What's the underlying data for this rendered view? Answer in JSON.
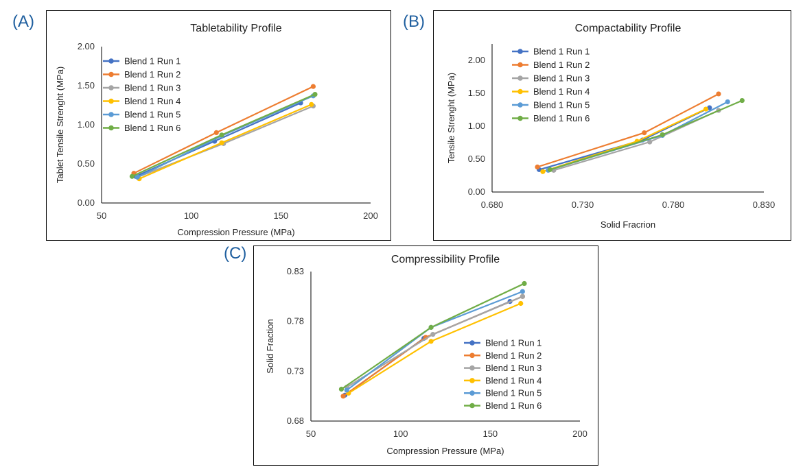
{
  "panels": [
    {
      "letter": "(A)"
    },
    {
      "letter": "(B)"
    },
    {
      "letter": "(C)"
    }
  ],
  "chart_data": [
    {
      "type": "line",
      "title": "Tabletability Profile",
      "xlabel": "Compression Pressure (MPa)",
      "ylabel": "Tablet Tensile Strenght (MPa)",
      "xlim": [
        50,
        200
      ],
      "ylim": [
        0,
        2
      ],
      "xticks": [
        "50",
        "100",
        "150",
        "200"
      ],
      "yticks": [
        "0.00",
        "0.50",
        "1.00",
        "1.50",
        "2.00"
      ],
      "legend": "top-left",
      "series": [
        {
          "name": "Blend 1 Run 1",
          "color": "#4472c4",
          "x": [
            69,
            113,
            161
          ],
          "y": [
            0.34,
            0.79,
            1.28
          ]
        },
        {
          "name": "Blend 1 Run 2",
          "color": "#ed7d31",
          "x": [
            68,
            114,
            168
          ],
          "y": [
            0.38,
            0.9,
            1.49
          ]
        },
        {
          "name": "Blend 1 Run 3",
          "color": "#a5a5a5",
          "x": [
            70,
            118,
            168
          ],
          "y": [
            0.33,
            0.76,
            1.24
          ]
        },
        {
          "name": "Blend 1 Run 4",
          "color": "#ffc000",
          "x": [
            71,
            117,
            167
          ],
          "y": [
            0.31,
            0.77,
            1.26
          ]
        },
        {
          "name": "Blend 1 Run 5",
          "color": "#5b9bd5",
          "x": [
            70,
            117,
            168
          ],
          "y": [
            0.33,
            0.86,
            1.37
          ]
        },
        {
          "name": "Blend 1 Run 6",
          "color": "#70ad47",
          "x": [
            67,
            117,
            169
          ],
          "y": [
            0.34,
            0.87,
            1.39
          ]
        }
      ]
    },
    {
      "type": "line",
      "title": "Compactability Profile",
      "xlabel": "Solid Fracrion",
      "ylabel": "Tensile Strenght  (MPa)",
      "xlim": [
        0.68,
        0.83
      ],
      "ylim": [
        0,
        2.25
      ],
      "xticks": [
        "0.680",
        "0.730",
        "0.780",
        "0.830"
      ],
      "yticks": [
        "0.00",
        "0.50",
        "1.00",
        "1.50",
        "2.00"
      ],
      "ytick_values": [
        0,
        0.5,
        1.0,
        1.5,
        2.0
      ],
      "legend": "top-left",
      "series": [
        {
          "name": "Blend 1 Run 1",
          "color": "#4472c4",
          "x": [
            0.706,
            0.763,
            0.8
          ],
          "y": [
            0.34,
            0.79,
            1.28
          ]
        },
        {
          "name": "Blend 1 Run 2",
          "color": "#ed7d31",
          "x": [
            0.705,
            0.764,
            0.805
          ],
          "y": [
            0.38,
            0.9,
            1.49
          ]
        },
        {
          "name": "Blend 1 Run 3",
          "color": "#a5a5a5",
          "x": [
            0.714,
            0.767,
            0.805
          ],
          "y": [
            0.33,
            0.76,
            1.24
          ]
        },
        {
          "name": "Blend 1 Run 4",
          "color": "#ffc000",
          "x": [
            0.708,
            0.76,
            0.798
          ],
          "y": [
            0.31,
            0.77,
            1.26
          ]
        },
        {
          "name": "Blend 1 Run 5",
          "color": "#5b9bd5",
          "x": [
            0.711,
            0.774,
            0.81
          ],
          "y": [
            0.33,
            0.86,
            1.37
          ]
        },
        {
          "name": "Blend 1 Run 6",
          "color": "#70ad47",
          "x": [
            0.712,
            0.774,
            0.818
          ],
          "y": [
            0.34,
            0.87,
            1.39
          ]
        }
      ]
    },
    {
      "type": "line",
      "title": "Compressibility Profile",
      "xlabel": "Compression Pressure (MPa)",
      "ylabel": "Solid Fraction",
      "xlim": [
        50,
        200
      ],
      "ylim": [
        0.68,
        0.83
      ],
      "xticks": [
        "50",
        "100",
        "150",
        "200"
      ],
      "yticks": [
        "0.68",
        "0.73",
        "0.78",
        "0.83"
      ],
      "legend": "bottom-right",
      "series": [
        {
          "name": "Blend 1 Run 1",
          "color": "#4472c4",
          "x": [
            69,
            113,
            161
          ],
          "y": [
            0.706,
            0.763,
            0.8
          ]
        },
        {
          "name": "Blend 1 Run 2",
          "color": "#ed7d31",
          "x": [
            68,
            114,
            168
          ],
          "y": [
            0.705,
            0.764,
            0.805
          ]
        },
        {
          "name": "Blend 1 Run 3",
          "color": "#a5a5a5",
          "x": [
            70,
            118,
            168
          ],
          "y": [
            0.714,
            0.767,
            0.805
          ]
        },
        {
          "name": "Blend 1 Run 4",
          "color": "#ffc000",
          "x": [
            71,
            117,
            167
          ],
          "y": [
            0.708,
            0.76,
            0.798
          ]
        },
        {
          "name": "Blend 1 Run 5",
          "color": "#5b9bd5",
          "x": [
            70,
            117,
            168
          ],
          "y": [
            0.711,
            0.774,
            0.81
          ]
        },
        {
          "name": "Blend 1 Run 6",
          "color": "#70ad47",
          "x": [
            67,
            117,
            169
          ],
          "y": [
            0.712,
            0.774,
            0.818
          ]
        }
      ]
    }
  ]
}
